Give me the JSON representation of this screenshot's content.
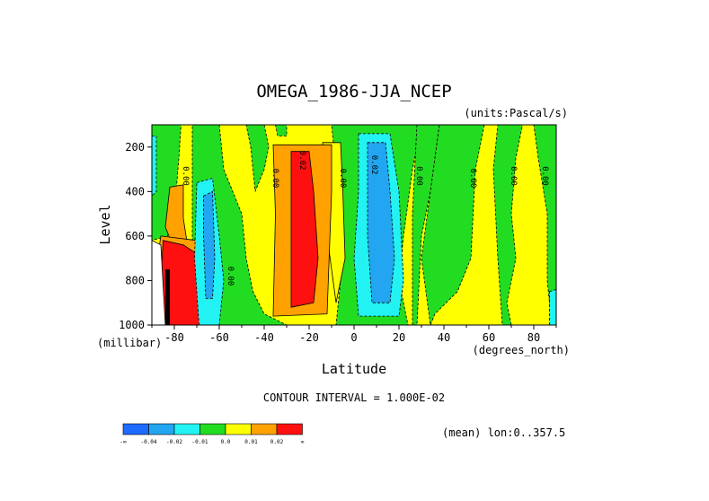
{
  "chart_data": {
    "type": "heatmap",
    "title": "OMEGA_1986-JJA_NCEP",
    "units_note": "(units:Pascal/s)",
    "xlabel": "Latitude",
    "xunits": "(degrees_north)",
    "ylabel": "Level",
    "yunits": "(millibar)",
    "xlim": [
      -90,
      90
    ],
    "ylim": [
      1000,
      100
    ],
    "x_ticks": [
      "-80",
      "-60",
      "-40",
      "-20",
      "0",
      "20",
      "40",
      "60",
      "80"
    ],
    "y_ticks": [
      "200",
      "400",
      "600",
      "800",
      "1000"
    ],
    "contour_interval_text": "CONTOUR INTERVAL = 1.000E-02",
    "footer_text": "(mean) lon:0..357.5",
    "colorbar": {
      "colors": [
        "#1e6bff",
        "#22a6f2",
        "#22f2f2",
        "#22dc22",
        "#ffff00",
        "#ffa200",
        "#ff1010"
      ],
      "labels": [
        "-∞",
        "-0.04",
        "-0.02",
        "-0.01",
        "0.0",
        "0.01",
        "0.02",
        "∞"
      ]
    },
    "contour_labels": [
      "0.00",
      "0.00",
      "0.02",
      "0.00",
      "0.02",
      "0.00",
      "0.00",
      "0.00",
      "0.00",
      "0.00"
    ],
    "regions": [
      {
        "level": "negative-weak",
        "color": "#22dc22",
        "lat_range": [
          -90,
          -72
        ],
        "p_range": [
          100,
          600
        ]
      },
      {
        "level": "positive-weak",
        "color": "#ffff00",
        "lat_range": [
          -86,
          -77
        ],
        "p_range": [
          130,
          600
        ]
      },
      {
        "level": "positive-mid",
        "color": "#ffa200",
        "lat_range": [
          -79,
          -73
        ],
        "p_range": [
          400,
          660
        ]
      },
      {
        "level": "positive-strong",
        "color": "#ff1010",
        "lat_range": [
          -83,
          -67
        ],
        "p_range": [
          650,
          1000
        ]
      },
      {
        "level": "negative-mid",
        "color": "#22f2f2",
        "lat_range": [
          -70,
          -60
        ],
        "p_range": [
          350,
          1000
        ]
      },
      {
        "level": "negative-strong",
        "color": "#22a6f2",
        "lat_range": [
          -67,
          -63
        ],
        "p_range": [
          400,
          900
        ]
      },
      {
        "level": "positive-strong",
        "color": "#ff1010",
        "lat_range": [
          -28,
          -12
        ],
        "p_range": [
          220,
          940
        ]
      },
      {
        "level": "negative-strong",
        "color": "#22a6f2",
        "lat_range": [
          4,
          18
        ],
        "p_range": [
          150,
          920
        ]
      },
      {
        "level": "positive-weak",
        "color": "#ffff00",
        "lat_range": [
          50,
          65
        ],
        "p_range": [
          100,
          1000
        ]
      }
    ]
  }
}
